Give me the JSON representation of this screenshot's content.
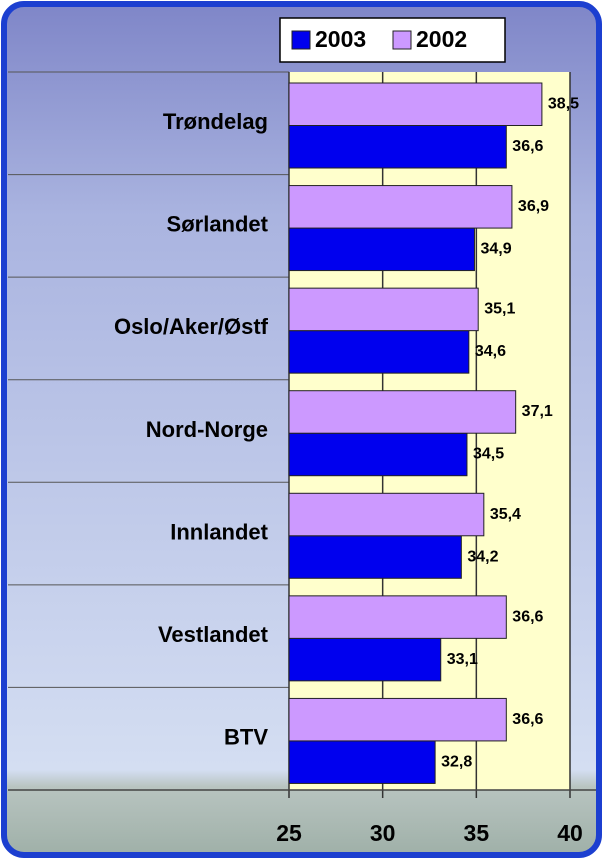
{
  "chart_data": {
    "type": "bar",
    "orientation": "horizontal",
    "categories": [
      "Trøndelag",
      "Sørlandet",
      "Oslo/Aker/Østf",
      "Nord-Norge",
      "Innlandet",
      "Vestlandet",
      "BTV"
    ],
    "series": [
      {
        "name": "2003",
        "color": "#0000ee",
        "values": [
          36.6,
          34.9,
          34.6,
          34.5,
          34.2,
          33.1,
          32.8
        ],
        "value_labels": [
          "36,6",
          "34,9",
          "34,6",
          "34,5",
          "34,2",
          "33,1",
          "32,8"
        ]
      },
      {
        "name": "2002",
        "color": "#cc99ff",
        "values": [
          38.5,
          36.9,
          35.1,
          37.1,
          35.4,
          36.6,
          36.6
        ],
        "value_labels": [
          "38,5",
          "36,9",
          "35,1",
          "37,1",
          "35,4",
          "36,6",
          "36,6"
        ]
      }
    ],
    "xlim": [
      25,
      40
    ],
    "xticks": [
      25,
      30,
      35,
      40
    ],
    "grid": true,
    "legend": "top"
  }
}
